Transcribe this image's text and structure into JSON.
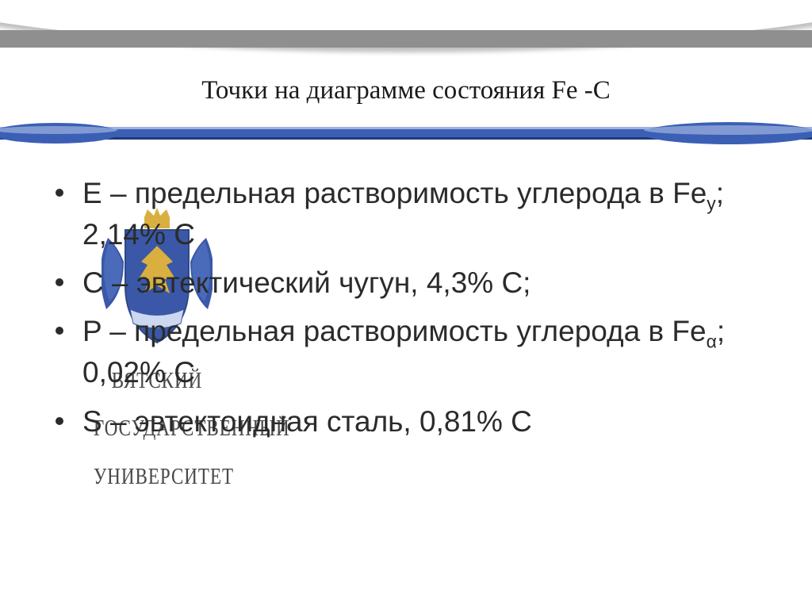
{
  "title": "Точки на диаграмме состояния Fe -C",
  "bullets": [
    {
      "letter": "E",
      "dash": " – ",
      "t1": "предельная растворимость углерода в Fe",
      "sub": "у",
      "t2": "; 2,14% C"
    },
    {
      "letter": "C",
      "dash": " – ",
      "t1": "эвтектический чугун, 4,3% С;",
      "sub": "",
      "t2": ""
    },
    {
      "letter": "P",
      "dash": " – ",
      "t1": "предельная растворимость углерода в Fe",
      "sub": "α",
      "t2": "; 0,02% C"
    },
    {
      "letter": "S",
      "dash": " – ",
      "t1": "эвтектоидная сталь, 0,81% C",
      "sub": "",
      "t2": ""
    }
  ],
  "watermark": {
    "line1": "ВЯТСКИЙ",
    "line2": "ГОСУДАРСТВЕННЫЙ",
    "line3": "УНИВЕРСИТЕТ"
  },
  "colors": {
    "divider_main": "#3b5fb5",
    "divider_dark": "#1e3a7a",
    "divider_light": "#9fb3e0",
    "shield_blue": "#2a4aa0",
    "shield_gold": "#d6a92f",
    "text": "#2b2b2b",
    "title": "#1a1a1a",
    "arch_grey": "#8f8f8f"
  },
  "typography": {
    "title_fontsize": 33,
    "body_fontsize": 37,
    "wm_fontsize": 23
  }
}
